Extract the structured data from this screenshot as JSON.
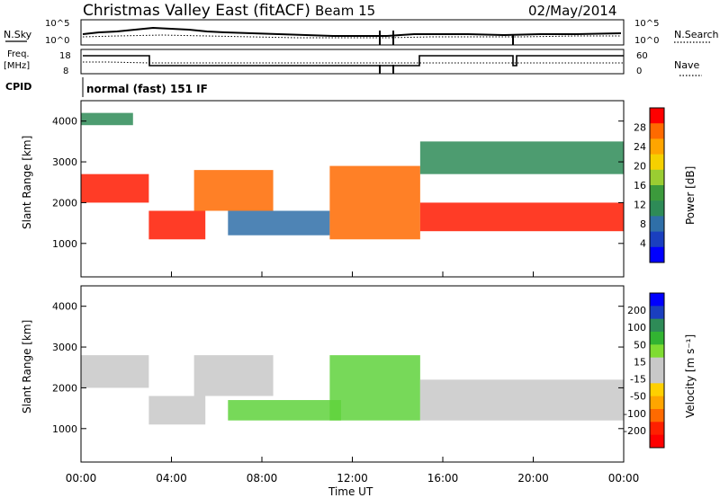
{
  "header": {
    "title": "Christmas Valley East (fitACF)",
    "beam": "Beam 15",
    "date": "02/May/2014",
    "cpid_label": "CPID",
    "cpid_value": "normal (fast) 151 IF"
  },
  "top_strips": {
    "noise": {
      "left_label": "N.Sky",
      "right_label": "N.Search",
      "left_ticks": [
        "10^5",
        "10^0"
      ],
      "right_ticks": [
        "10^5",
        "10^0"
      ]
    },
    "freq": {
      "left_label_1": "Freq.",
      "left_label_2": "[MHz]",
      "right_label": "Nave",
      "left_ticks": [
        "18",
        "8"
      ],
      "right_ticks": [
        "60",
        "0"
      ]
    }
  },
  "chart_data": [
    {
      "type": "heatmap",
      "panel": "power",
      "ylabel": "Slant Range [km]",
      "xlabel": "",
      "ylim": [
        180,
        4500
      ],
      "y_ticks": [
        1000,
        2000,
        3000,
        4000
      ],
      "x_range_hours": [
        0,
        24
      ],
      "colorbar": {
        "label": "Power [dB]",
        "ticks": [
          28,
          24,
          20,
          16,
          12,
          8,
          4
        ],
        "colors": [
          "#ff0000",
          "#ff6a00",
          "#ffa500",
          "#f5d000",
          "#9acd32",
          "#3c9a3c",
          "#2e8b57",
          "#2f6fa8",
          "#1a3fbf",
          "#0000ff"
        ]
      },
      "features": [
        {
          "name": "morning-band",
          "hours": [
            0,
            3
          ],
          "range_km": [
            2000,
            2700
          ],
          "level_db": 28
        },
        {
          "name": "upper-morning",
          "hours": [
            0,
            2.3
          ],
          "range_km": [
            3900,
            4200
          ],
          "level_db": 12
        },
        {
          "name": "dip-band",
          "hours": [
            3,
            5.5
          ],
          "range_km": [
            1100,
            1800
          ],
          "level_db": 28
        },
        {
          "name": "rising-band",
          "hours": [
            5,
            8.5
          ],
          "range_km": [
            1800,
            2800
          ],
          "level_db": 24
        },
        {
          "name": "mid-patch",
          "hours": [
            6.5,
            11
          ],
          "range_km": [
            1200,
            1800
          ],
          "level_db": 8
        },
        {
          "name": "descending-band",
          "hours": [
            11,
            15
          ],
          "range_km": [
            1100,
            2900
          ],
          "level_db": 24
        },
        {
          "name": "afternoon-band",
          "hours": [
            15,
            24
          ],
          "range_km": [
            1300,
            2000
          ],
          "level_db": 28
        },
        {
          "name": "upper-afternoon",
          "hours": [
            15,
            24
          ],
          "range_km": [
            2700,
            3500
          ],
          "level_db": 10
        }
      ]
    },
    {
      "type": "heatmap",
      "panel": "velocity",
      "ylabel": "Slant Range [km]",
      "xlabel": "Time UT",
      "ylim": [
        180,
        4500
      ],
      "y_ticks": [
        1000,
        2000,
        3000,
        4000
      ],
      "x_ticks": [
        "00:00",
        "04:00",
        "08:00",
        "12:00",
        "16:00",
        "20:00",
        "00:00"
      ],
      "x_range_hours": [
        0,
        24
      ],
      "colorbar": {
        "label": "Velocity [m s⁻¹]",
        "ticks": [
          "200",
          "100",
          "50",
          "15",
          "-15",
          "-50",
          "-100",
          "-200"
        ],
        "colors": [
          "#0000ff",
          "#1a3fbf",
          "#2e8b57",
          "#32b432",
          "#7fdc32",
          "#c8c8c8",
          "#c8c8c8",
          "#ffd000",
          "#ffa500",
          "#ff6a00",
          "#ff2000",
          "#ff0000"
        ]
      },
      "features": [
        {
          "name": "ground-scatter-morning",
          "hours": [
            0,
            3
          ],
          "range_km": [
            2000,
            2800
          ],
          "velocity": 0
        },
        {
          "name": "ground-scatter-dip",
          "hours": [
            3,
            5.5
          ],
          "range_km": [
            1100,
            1800
          ],
          "velocity": 0
        },
        {
          "name": "ground-scatter-rise",
          "hours": [
            5,
            8.5
          ],
          "range_km": [
            1800,
            2800
          ],
          "velocity": 0
        },
        {
          "name": "green-patch",
          "hours": [
            6.5,
            11.5
          ],
          "range_km": [
            1200,
            1700
          ],
          "velocity": 40
        },
        {
          "name": "green-descending",
          "hours": [
            11,
            15
          ],
          "range_km": [
            1200,
            2800
          ],
          "velocity": 40
        },
        {
          "name": "ground-scatter-afternoon",
          "hours": [
            15,
            24
          ],
          "range_km": [
            1200,
            2200
          ],
          "velocity": 0
        }
      ]
    }
  ]
}
